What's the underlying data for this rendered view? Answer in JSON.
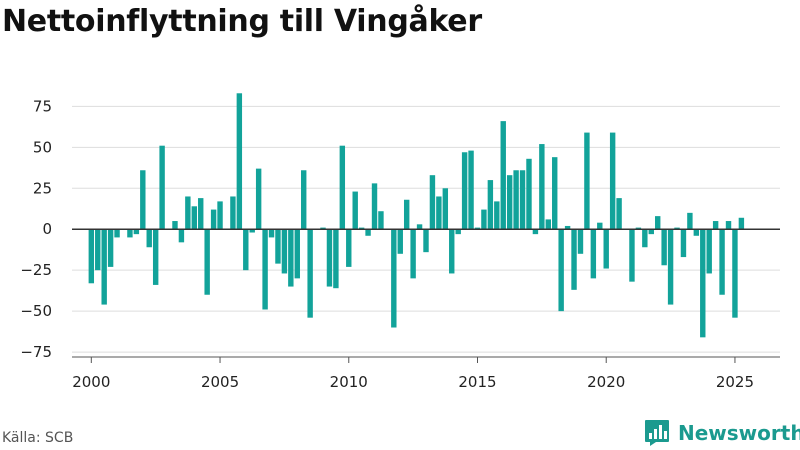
{
  "title": "Nettoinflyttning till Vingåker",
  "source": "Källa: SCB",
  "brand": {
    "name": "Newsworthy",
    "icon": "bar-chart-logo-icon"
  },
  "colors": {
    "bar": "#12a39a",
    "grid": "#dddddd",
    "zero_line": "#333333",
    "axis": "#555555"
  },
  "chart_data": {
    "type": "bar",
    "title": "Nettoinflyttning till Vingåker",
    "xlabel": "",
    "ylabel": "",
    "granularity": "quarter",
    "x_ticks": [
      "2000",
      "2005",
      "2010",
      "2015",
      "2020",
      "2025"
    ],
    "y_ticks": [
      "−75",
      "−50",
      "−25",
      "0",
      "25",
      "50",
      "75"
    ],
    "y_tick_values": [
      -75,
      -50,
      -25,
      0,
      25,
      50,
      75
    ],
    "ylim": [
      -78,
      85
    ],
    "xlim": [
      1999.25,
      2026.75
    ],
    "grid": "horizontal",
    "legend": "none",
    "x_start": "2000 Q1",
    "values": [
      -33,
      -25,
      -46,
      -23,
      -5,
      0,
      -5,
      -3,
      36,
      -11,
      -34,
      51,
      0,
      5,
      -8,
      20,
      14,
      19,
      -40,
      12,
      17,
      0,
      20,
      83,
      -25,
      -2,
      37,
      -49,
      -5,
      -21,
      -27,
      -35,
      -30,
      36,
      -54,
      0,
      1,
      -35,
      -36,
      51,
      -23,
      23,
      1,
      -4,
      28,
      11,
      0,
      -60,
      -15,
      18,
      -30,
      3,
      -14,
      33,
      20,
      25,
      -27,
      -3,
      47,
      48,
      1,
      12,
      30,
      17,
      66,
      33,
      36,
      36,
      43,
      -3,
      52,
      6,
      44,
      -50,
      2,
      -37,
      -15,
      59,
      -30,
      4,
      -24,
      59,
      19,
      0,
      -32,
      1,
      -11,
      -3,
      8,
      -22,
      -46,
      1,
      -17,
      10,
      -4,
      -66,
      -27,
      5,
      -40,
      5,
      -54,
      7
    ]
  }
}
